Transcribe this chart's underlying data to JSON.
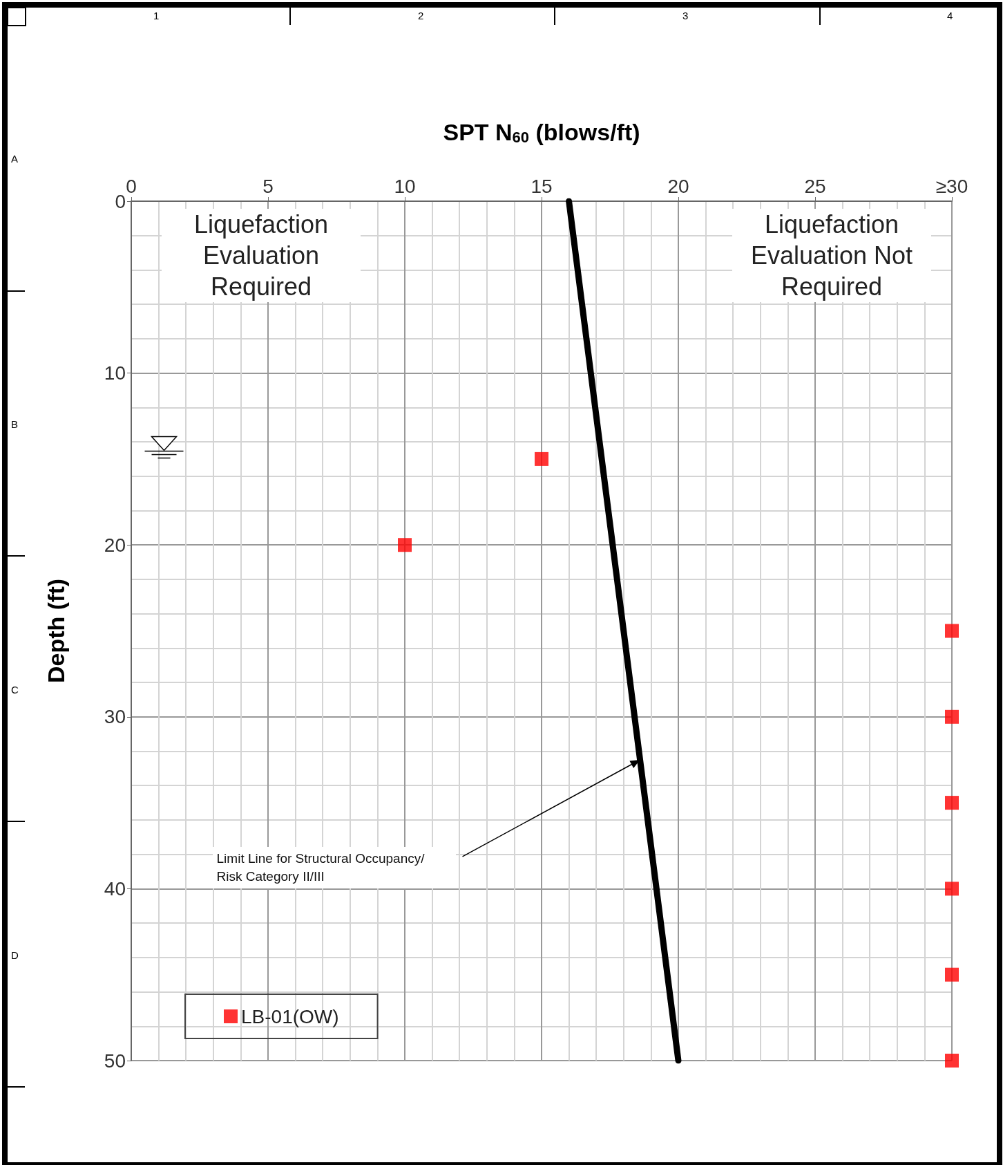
{
  "chart_data": {
    "type": "scatter",
    "xlabel": "SPT N$_{60}$ (blows/ft)",
    "ylabel": "Depth (ft)",
    "series": [
      {
        "name": "LB-01(OW)",
        "marker": "square",
        "color": "#ff0000",
        "x": [
          15,
          10,
          30,
          30,
          30,
          30,
          30,
          30
        ],
        "values": [
          15,
          20,
          25,
          30,
          35,
          40,
          45,
          50
        ]
      },
      {
        "type": "line",
        "marker": "none",
        "color": "#000000",
        "x": [
          16,
          20
        ],
        "values": [
          0,
          50
        ]
      }
    ],
    "xlim": [
      0,
      30
    ],
    "xticks": [
      0,
      5,
      10,
      15,
      20,
      25,
      {
        "value": 30,
        "label": "≥30"
      }
    ],
    "ylim": [
      50,
      0
    ],
    "yticks": [
      0,
      10,
      20,
      30,
      40,
      50
    ],
    "grid": true,
    "legend": "bottom left",
    "line_style": "solid",
    "annotations": [
      "Liquefaction Evaluation Required",
      "Liquefaction Evaluation Not Required",
      "Limit Line for Structural Occupancy/ Risk Category II/III",
      "1",
      "2",
      "3",
      "4",
      "A",
      "B",
      "C",
      "D"
    ]
  }
}
